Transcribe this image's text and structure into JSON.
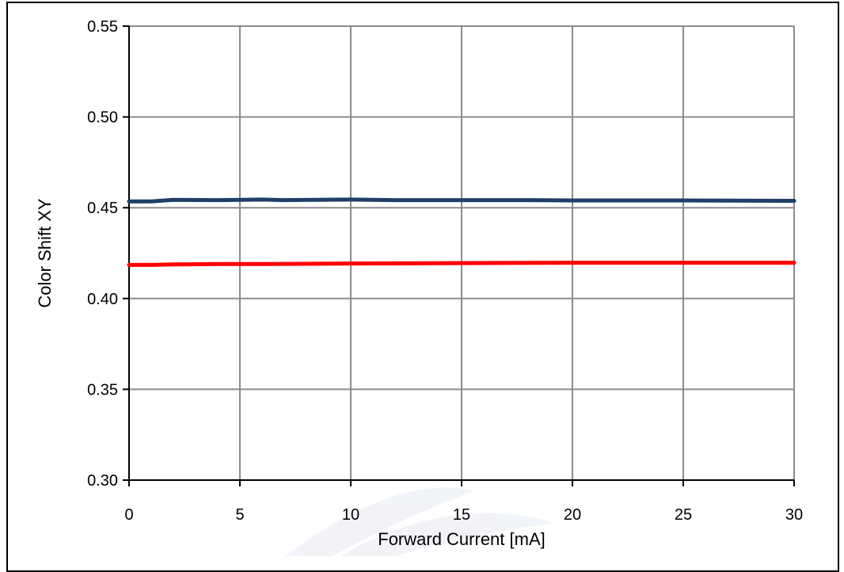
{
  "chart_data": {
    "type": "line",
    "title": "",
    "xlabel": "Forward Current [mA]",
    "ylabel": "Color  Shift   XY",
    "xlim": [
      0,
      30
    ],
    "ylim": [
      0.3,
      0.55
    ],
    "x_ticks": [
      "0",
      "5",
      "10",
      "15",
      "20",
      "25",
      "30"
    ],
    "y_ticks": [
      "0.30",
      "0.35",
      "0.40",
      "0.45",
      "0.50",
      "0.55"
    ],
    "grid": true,
    "legend": "none",
    "series": [
      {
        "color": "#1f3f66",
        "x": [
          0,
          1,
          2,
          4,
          6,
          7,
          10,
          12,
          15,
          18,
          20,
          25,
          30
        ],
        "y": [
          0.4535,
          0.4535,
          0.4543,
          0.4542,
          0.4545,
          0.4542,
          0.4545,
          0.4542,
          0.4542,
          0.4542,
          0.454,
          0.454,
          0.4538
        ]
      },
      {
        "color": "#ff0000",
        "x": [
          0,
          1,
          2,
          4,
          6,
          10,
          15,
          20,
          25,
          30
        ],
        "y": [
          0.4185,
          0.4185,
          0.4188,
          0.419,
          0.419,
          0.4193,
          0.4195,
          0.4197,
          0.4197,
          0.4197
        ]
      }
    ]
  }
}
